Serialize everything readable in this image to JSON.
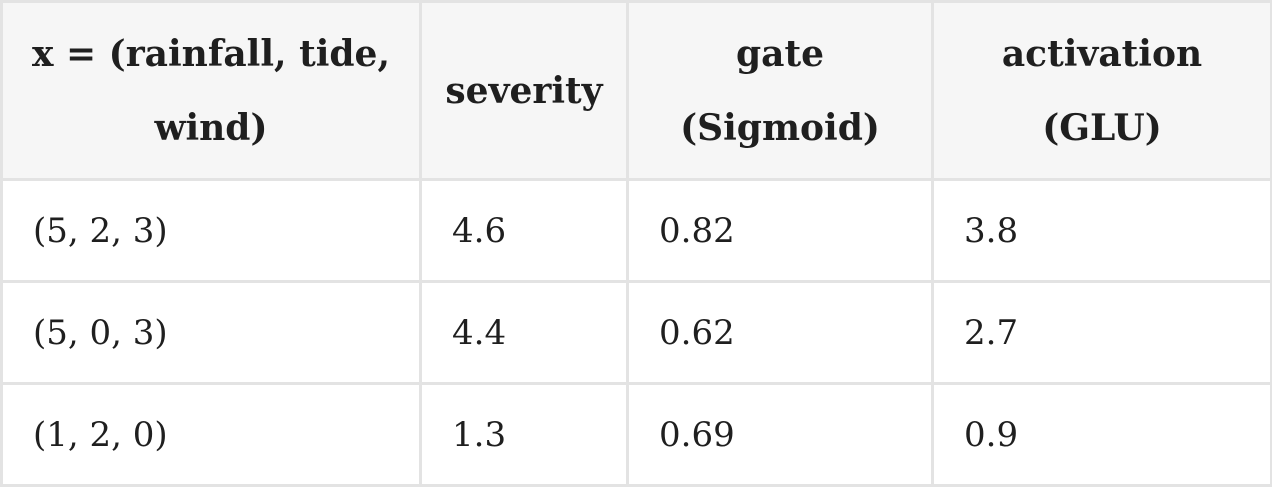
{
  "table": {
    "headers": [
      "x = (rainfall, tide, wind)",
      "severity",
      "gate (Sigmoid)",
      "activation (GLU)"
    ],
    "rows": [
      [
        "(5, 2, 3)",
        "4.6",
        "0.82",
        "3.8"
      ],
      [
        "(5, 0, 3)",
        "4.4",
        "0.62",
        "2.7"
      ],
      [
        "(1, 2, 0)",
        "1.3",
        "0.69",
        "0.9"
      ]
    ]
  }
}
